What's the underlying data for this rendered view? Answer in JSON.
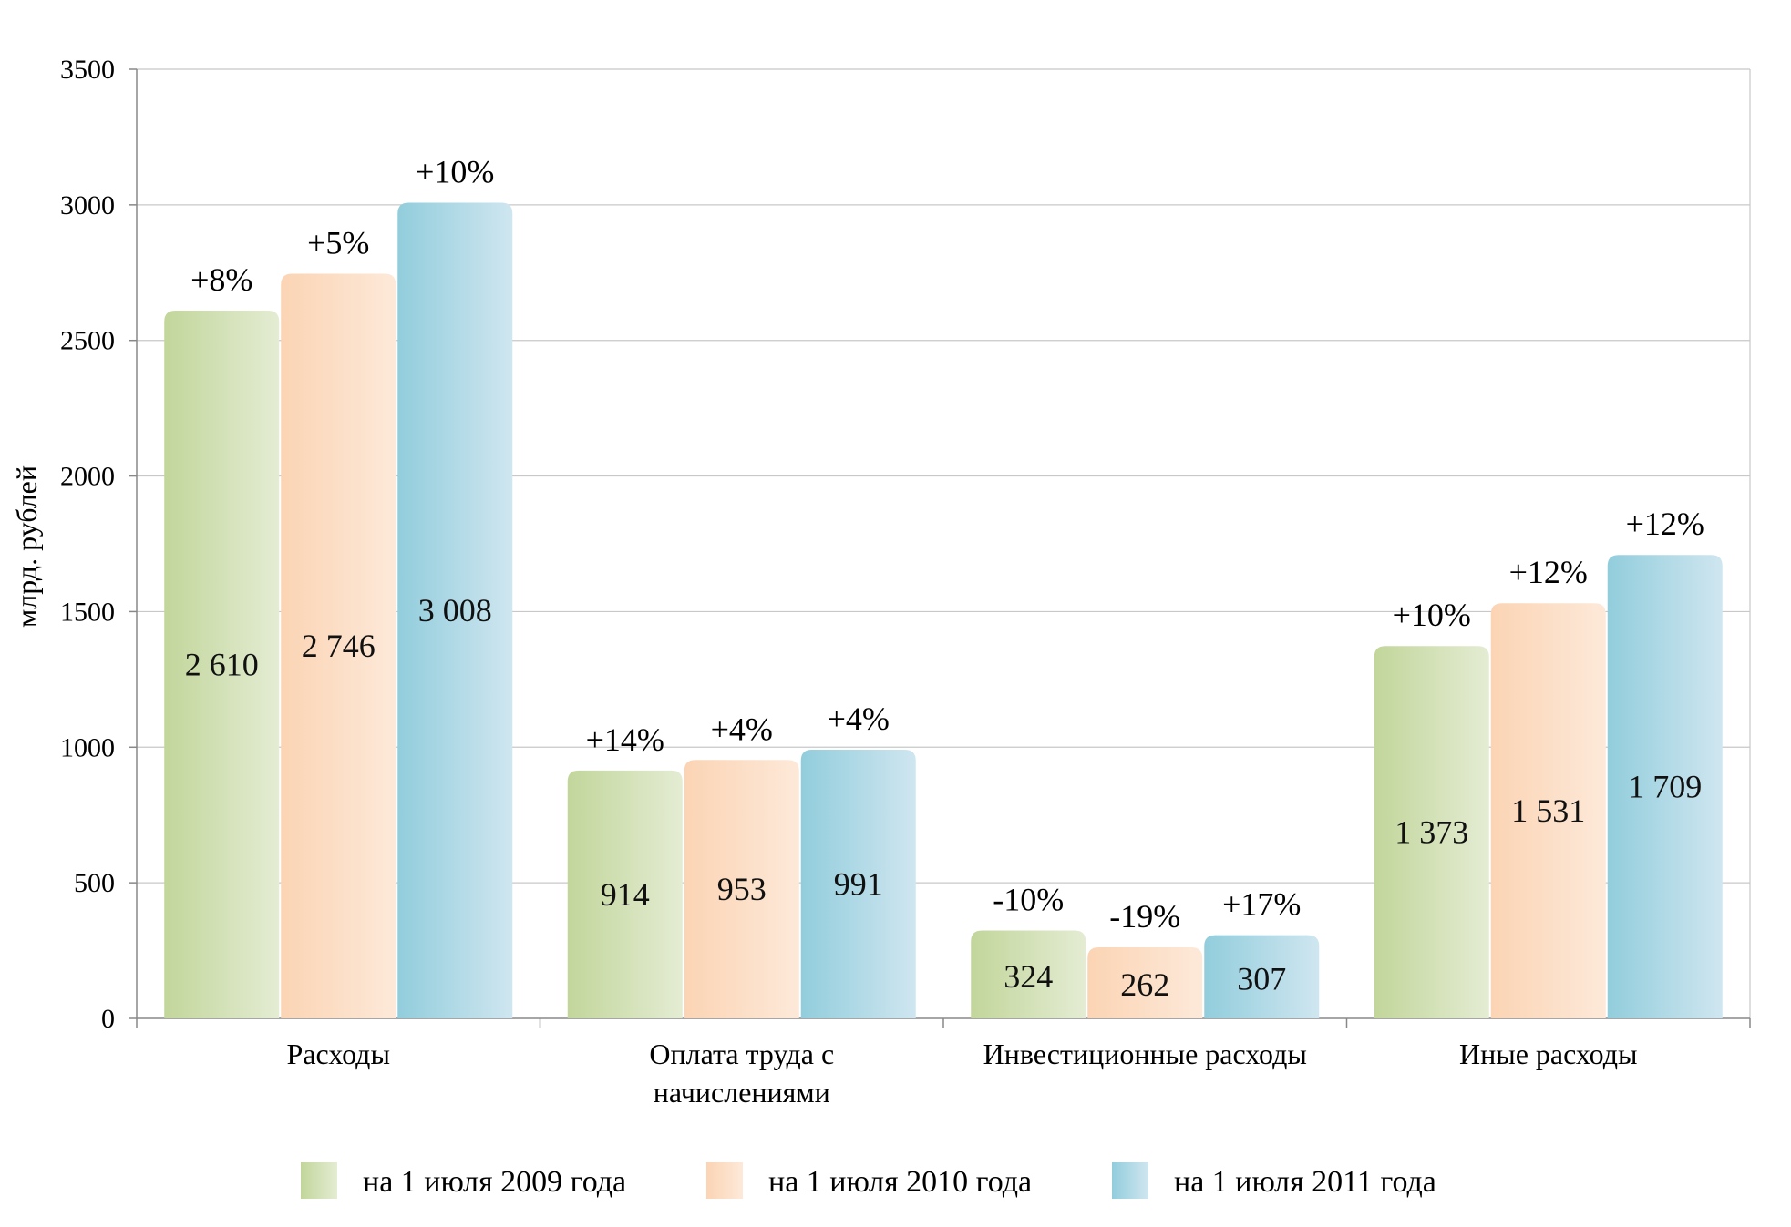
{
  "chart_data": {
    "type": "bar",
    "ylabel": "млрд. рублей",
    "ylim": [
      0,
      3500
    ],
    "yticks": [
      0,
      500,
      1000,
      1500,
      2000,
      2500,
      3000,
      3500
    ],
    "grid": true,
    "legend_position": "bottom",
    "categories": [
      [
        "Расходы"
      ],
      [
        "Оплата труда с",
        "начислениями"
      ],
      [
        "Инвестиционные расходы"
      ],
      [
        "Иные расходы"
      ]
    ],
    "series": [
      {
        "name": "на 1 июля 2009 года",
        "color_dark": "#c2d69b",
        "color_light": "#e4ecd3",
        "values": [
          2610,
          914,
          324,
          1373
        ],
        "value_labels": [
          "2 610",
          "914",
          "324",
          "1 373"
        ],
        "change_labels": [
          "+8%",
          "+14%",
          "-10%",
          "+10%"
        ]
      },
      {
        "name": "на 1 июля 2010 года",
        "color_dark": "#fbd4b4",
        "color_light": "#fde9d9",
        "values": [
          2746,
          953,
          262,
          1531
        ],
        "value_labels": [
          "2 746",
          "953",
          "262",
          "1 531"
        ],
        "change_labels": [
          "+5%",
          "+4%",
          "-19%",
          "+12%"
        ]
      },
      {
        "name": "на 1 июля 2011 года",
        "color_dark": "#92cddc",
        "color_light": "#cfe6f0",
        "values": [
          3008,
          991,
          307,
          1709
        ],
        "value_labels": [
          "3 008",
          "991",
          "307",
          "1 709"
        ],
        "change_labels": [
          "+10%",
          "+4%",
          "+17%",
          "+12%"
        ]
      }
    ]
  }
}
